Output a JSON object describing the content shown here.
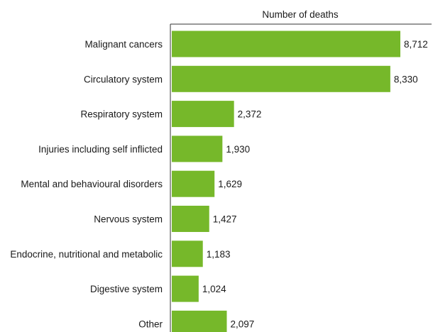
{
  "chart_data": {
    "type": "bar",
    "orientation": "horizontal",
    "xlabel": "Number of deaths",
    "ylabel": "",
    "categories": [
      "Malignant cancers",
      "Circulatory system",
      "Respiratory system",
      "Injuries including self inflicted",
      "Mental and behavioural disorders",
      "Nervous system",
      "Endocrine, nutritional and metabolic",
      "Digestive system",
      "Other"
    ],
    "values": [
      8712,
      8330,
      2372,
      1930,
      1629,
      1427,
      1183,
      1024,
      2097
    ],
    "value_labels": [
      "8,712",
      "8,330",
      "2,372",
      "1,930",
      "1,629",
      "1,427",
      "1,183",
      "1,024",
      "2,097"
    ],
    "xlim": [
      0,
      9000
    ],
    "grid": false,
    "legend": "none",
    "bar_color": "#76b82a",
    "axis_color": "#333333"
  }
}
